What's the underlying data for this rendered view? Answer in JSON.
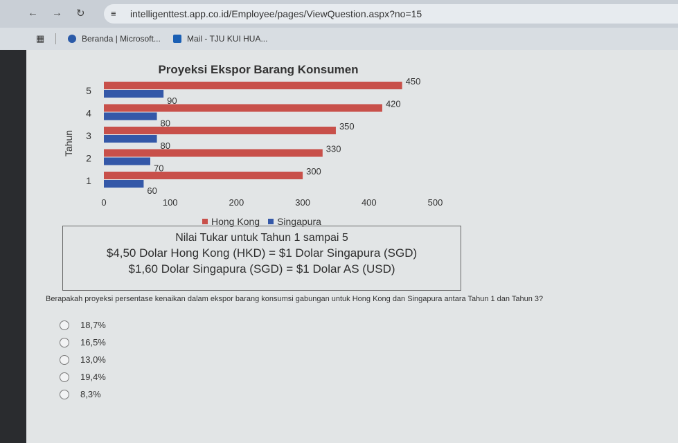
{
  "browser": {
    "url": "intelligenttest.app.co.id/Employee/pages/ViewQuestion.aspx?no=15",
    "bookmarks": [
      {
        "label": "Beranda | Microsoft...",
        "icon": "microsoft-icon"
      },
      {
        "label": "Mail - TJU KUI HUA...",
        "icon": "mail-icon"
      }
    ]
  },
  "chart_data": {
    "type": "bar",
    "orientation": "horizontal",
    "title": "Proyeksi Ekspor Barang Konsumen",
    "ylabel": "Tahun",
    "xlabel": "",
    "categories": [
      "1",
      "2",
      "3",
      "4",
      "5"
    ],
    "series": [
      {
        "name": "Hong Kong",
        "values": [
          300,
          330,
          350,
          420,
          450
        ],
        "color": "#c8504a"
      },
      {
        "name": "Singapura",
        "values": [
          60,
          70,
          80,
          80,
          90
        ],
        "color": "#3458a8"
      }
    ],
    "xlim": [
      0,
      500
    ],
    "xticks": [
      "0",
      "100",
      "200",
      "300",
      "400",
      "500"
    ],
    "grid": false,
    "legend": "bottom"
  },
  "exchange": {
    "title": "Nilai Tukar untuk Tahun 1 sampai 5",
    "line1": "$4,50 Dolar Hong Kong (HKD) = $1 Dolar Singapura (SGD)",
    "line2": "$1,60 Dolar Singapura (SGD) = $1 Dolar AS (USD)"
  },
  "question": "Berapakah proyeksi persentase kenaikan dalam ekspor barang konsumsi gabungan untuk Hong Kong dan Singapura antara Tahun 1 dan Tahun 3?",
  "options": [
    "18,7%",
    "16,5%",
    "13,0%",
    "19,4%",
    "8,3%"
  ]
}
